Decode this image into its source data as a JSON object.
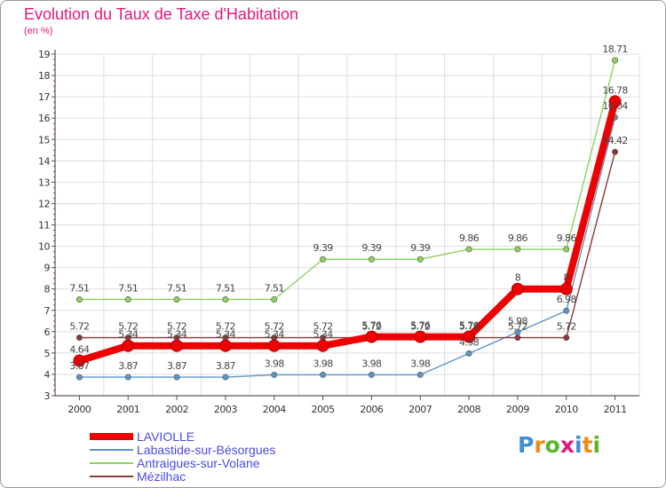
{
  "title": "Evolution du Taux de Taxe d'Habitation",
  "subtitle": "(en %)",
  "logo": {
    "text": "Proxiti",
    "colors": [
      "#3a8fd8",
      "#f08a1c",
      "#5ab52a",
      "#e0197d",
      "#3a8fd8",
      "#f08a1c",
      "#5ab52a"
    ]
  },
  "chart_data": {
    "type": "line",
    "title": "Evolution du Taux de Taxe d'Habitation",
    "ylabel": "(en %)",
    "xlabel": "",
    "ylim": [
      3,
      19
    ],
    "yticks": [
      3,
      4,
      5,
      6,
      7,
      8,
      9,
      10,
      11,
      12,
      13,
      14,
      15,
      16,
      17,
      18,
      19
    ],
    "x": [
      "2000",
      "2001",
      "2002",
      "2003",
      "2004",
      "2005",
      "2006",
      "2007",
      "2008",
      "2009",
      "2010",
      "2011"
    ],
    "series": [
      {
        "name": "Antraigues-sur-Volane",
        "color": "#8fd15e",
        "values": [
          7.51,
          7.51,
          7.51,
          7.51,
          7.51,
          9.39,
          9.39,
          9.39,
          9.86,
          9.86,
          9.86,
          18.71
        ],
        "labels": [
          "7.51",
          "7.51",
          "7.51",
          "7.51",
          "7.51",
          "9.39",
          "9.39",
          "9.39",
          "9.86",
          "9.86",
          "9.86",
          "18.71"
        ]
      },
      {
        "name": "Labastide-sur-Bésorgues",
        "color": "#5b95c8",
        "values": [
          3.87,
          3.87,
          3.87,
          3.87,
          3.98,
          3.98,
          3.98,
          3.98,
          4.98,
          5.98,
          6.98,
          16.04
        ],
        "labels": [
          "3.87",
          "3.87",
          "3.87",
          "3.87",
          "3.98",
          "3.98",
          "3.98",
          "3.98",
          "4.98",
          "5.98",
          "6.98",
          "16.04"
        ]
      },
      {
        "name": "Mézilhac",
        "color": "#8b3a3a",
        "values": [
          5.72,
          5.72,
          5.72,
          5.72,
          5.72,
          5.72,
          5.72,
          5.72,
          5.72,
          5.72,
          5.72,
          14.42
        ],
        "labels": [
          "5.72",
          "5.72",
          "5.72",
          "5.72",
          "5.72",
          "5.72",
          "5.72",
          "5.72",
          "5.72",
          "5.72",
          "5.72",
          "14.42"
        ]
      },
      {
        "name": "LAVIOLLE",
        "color": "#ee0000",
        "values": [
          4.64,
          5.34,
          5.34,
          5.34,
          5.34,
          5.34,
          5.76,
          5.76,
          5.76,
          8.0,
          8.0,
          16.78
        ],
        "labels": [
          "4.64",
          "5.34",
          "5.34",
          "5.34",
          "5.34",
          "5.34",
          "5.76",
          "5.76",
          "5.76",
          "8",
          "8",
          "16.78"
        ]
      }
    ],
    "legend": [
      "LAVIOLLE",
      "Labastide-sur-Bésorgues",
      "Antraigues-sur-Volane",
      "Mézilhac"
    ]
  }
}
